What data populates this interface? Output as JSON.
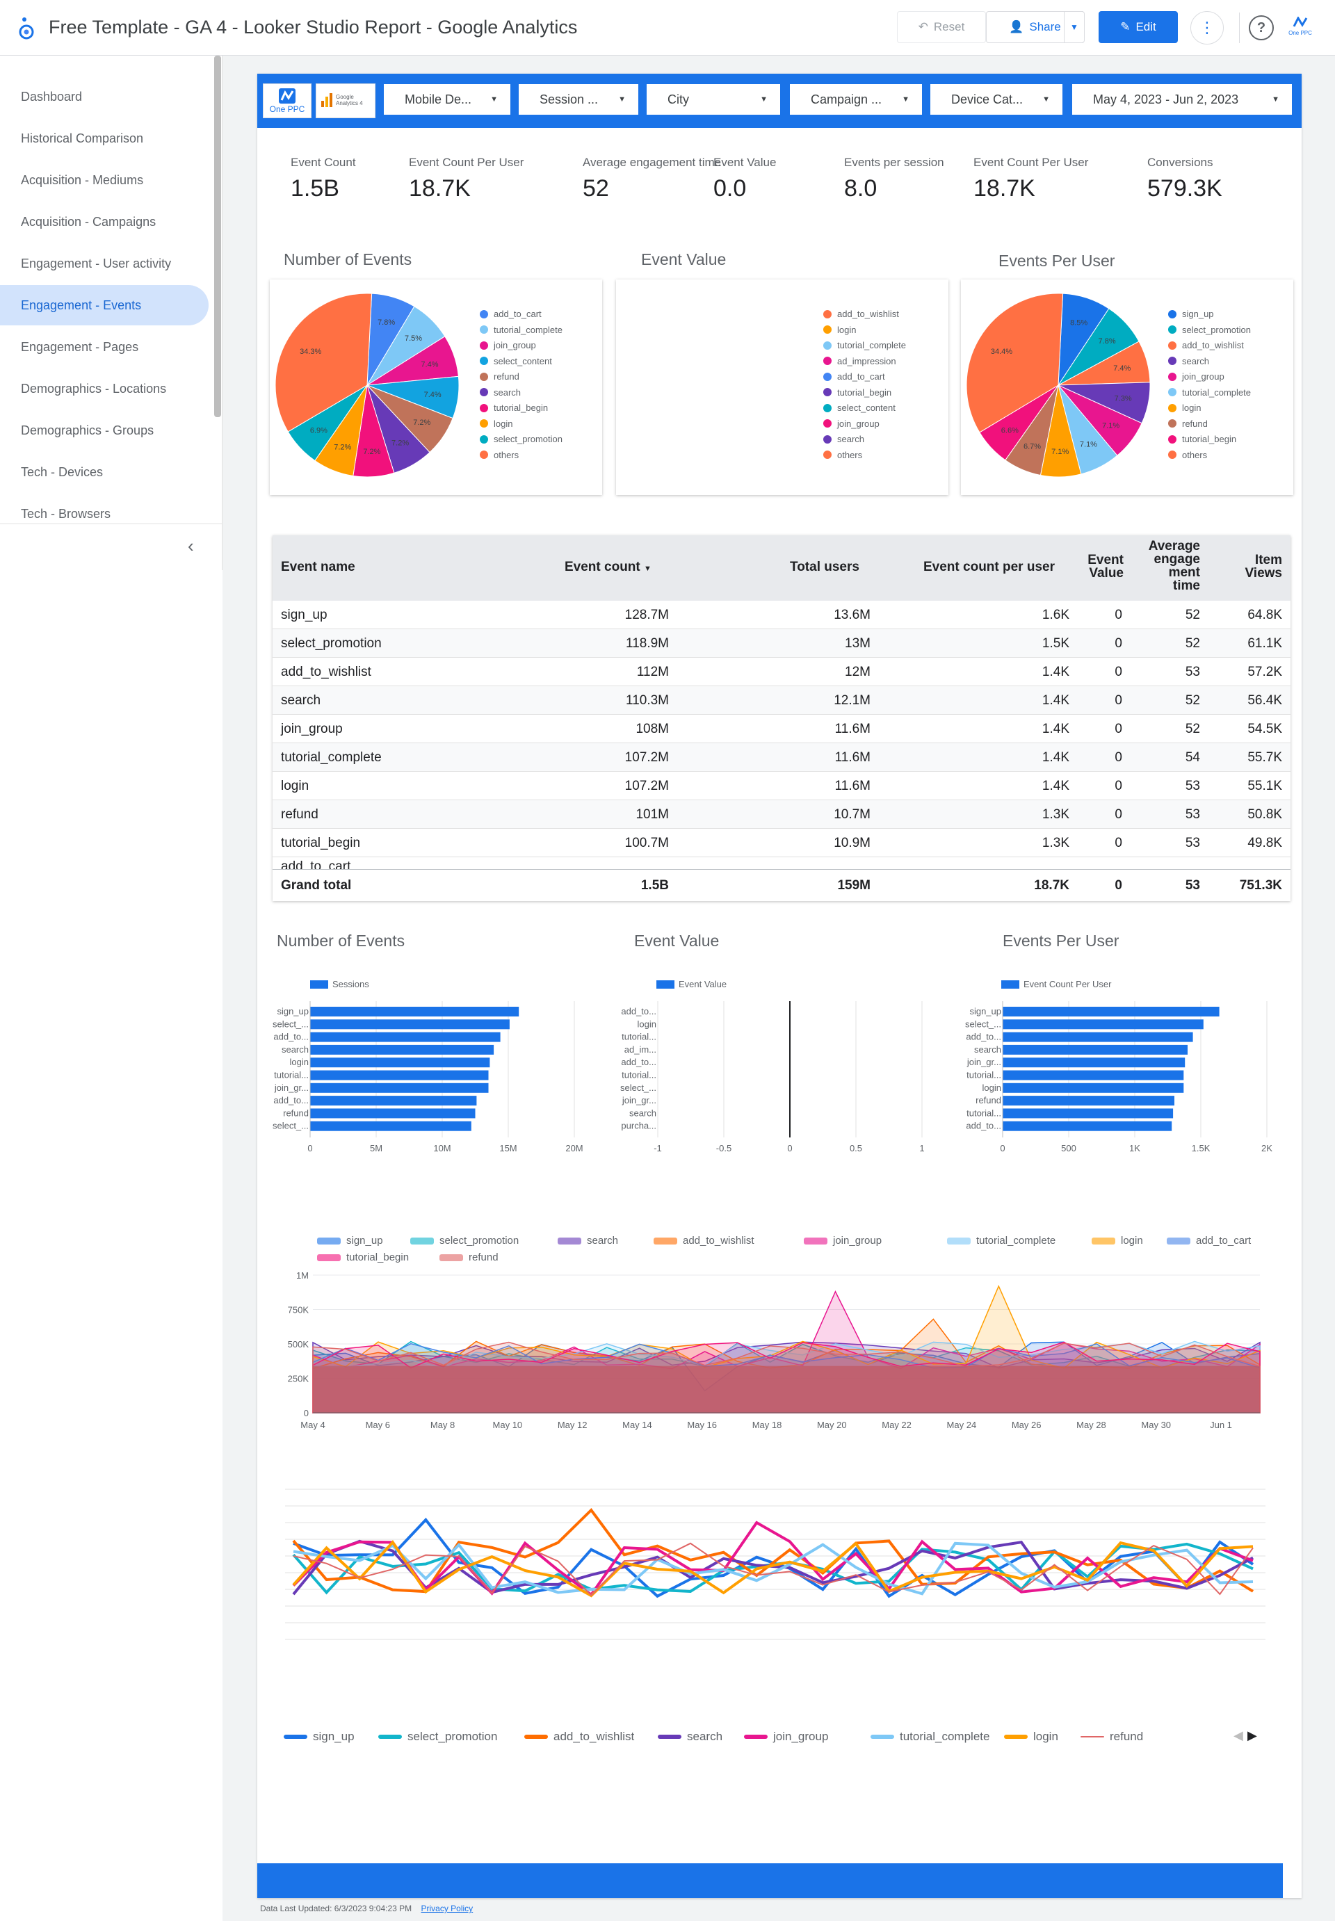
{
  "app": {
    "title": "Free Template - GA 4 - Looker Studio Report - Google Analytics"
  },
  "toolbar": {
    "reset_label": "Reset",
    "share_label": "Share",
    "edit_label": "Edit",
    "help_label": "?",
    "account_label": "One PPC"
  },
  "sidebar": {
    "items": [
      {
        "label": "Dashboard"
      },
      {
        "label": "Historical Comparison"
      },
      {
        "label": "Acquisition - Mediums"
      },
      {
        "label": "Acquisition - Campaigns"
      },
      {
        "label": "Engagement - User activity"
      },
      {
        "label": "Engagement - Events"
      },
      {
        "label": "Engagement - Pages"
      },
      {
        "label": "Demographics - Locations"
      },
      {
        "label": "Demographics - Groups"
      },
      {
        "label": "Tech - Devices"
      },
      {
        "label": "Tech - Browsers"
      }
    ],
    "active_index": 5
  },
  "filters": {
    "logo1": "One PPC",
    "logo2": "Google Analytics 4",
    "items": [
      {
        "label": "Mobile De..."
      },
      {
        "label": "Session ..."
      },
      {
        "label": "City"
      },
      {
        "label": "Campaign ..."
      },
      {
        "label": "Device Cat..."
      },
      {
        "label": "May 4, 2023 - Jun 2, 2023"
      }
    ]
  },
  "scorecards": [
    {
      "label": "Event Count",
      "value": "1.5B"
    },
    {
      "label": "Event Count Per User",
      "value": "18.7K"
    },
    {
      "label": "Average engagement time",
      "value": "52"
    },
    {
      "label": "Event Value",
      "value": "0.0"
    },
    {
      "label": "Events per session",
      "value": "8.0"
    },
    {
      "label": "Event Count Per User",
      "value": "18.7K"
    },
    {
      "label": "Conversions",
      "value": "579.3K"
    }
  ],
  "colors": {
    "blue": "#4285f4",
    "lightblue": "#7ec8f6",
    "magenta": "#e8168f",
    "cyan": "#12a3e0",
    "brown": "#c0735a",
    "purple": "#673ab7",
    "pink": "#f1117c",
    "orange": "#ff9f00",
    "teal": "#00acc1",
    "red_orange": "#ff7043",
    "accent": "#1a73e8"
  },
  "pies": {
    "events": {
      "title": "Number of Events",
      "legend": [
        "add_to_cart",
        "tutorial_complete",
        "join_group",
        "select_content",
        "refund",
        "search",
        "tutorial_begin",
        "login",
        "select_promotion",
        "others"
      ],
      "slice_labels": [
        "7.8%",
        "7.5%",
        "7.4%",
        "7.4%",
        "7.2%",
        "7.2%",
        "7.2%",
        "7.2%",
        "6.9%",
        "34.3%"
      ]
    },
    "value": {
      "title": "Event Value",
      "legend": [
        "add_to_wishlist",
        "login",
        "tutorial_complete",
        "ad_impression",
        "add_to_cart",
        "tutorial_begin",
        "select_content",
        "join_group",
        "search",
        "others"
      ]
    },
    "peruser": {
      "title": "Events Per User",
      "legend": [
        "sign_up",
        "select_promotion",
        "add_to_wishlist",
        "search",
        "join_group",
        "tutorial_complete",
        "login",
        "refund",
        "tutorial_begin",
        "others"
      ],
      "slice_labels": [
        "8.5%",
        "7.8%",
        "7.4%",
        "7.3%",
        "7.1%",
        "7.1%",
        "7.1%",
        "6.7%",
        "6.6%",
        "34.4%"
      ]
    }
  },
  "table": {
    "headers": {
      "event_name": "Event name",
      "event_count": "Event count",
      "total_users": "Total users",
      "per_user": "Event count per user",
      "event_value_1": "Event",
      "event_value_2": "Value",
      "avg_1": "Average",
      "avg_2": "engage",
      "avg_3": "ment",
      "avg_4": "time",
      "item_1": "Item",
      "item_2": "Views"
    },
    "rows": [
      {
        "name": "sign_up",
        "count": "128.7M",
        "users": "13.6M",
        "per_user": "1.6K",
        "value": "0",
        "avg": "52",
        "views": "64.8K"
      },
      {
        "name": "select_promotion",
        "count": "118.9M",
        "users": "13M",
        "per_user": "1.5K",
        "value": "0",
        "avg": "52",
        "views": "61.1K"
      },
      {
        "name": "add_to_wishlist",
        "count": "112M",
        "users": "12M",
        "per_user": "1.4K",
        "value": "0",
        "avg": "53",
        "views": "57.2K"
      },
      {
        "name": "search",
        "count": "110.3M",
        "users": "12.1M",
        "per_user": "1.4K",
        "value": "0",
        "avg": "52",
        "views": "56.4K"
      },
      {
        "name": "join_group",
        "count": "108M",
        "users": "11.6M",
        "per_user": "1.4K",
        "value": "0",
        "avg": "52",
        "views": "54.5K"
      },
      {
        "name": "tutorial_complete",
        "count": "107.2M",
        "users": "11.6M",
        "per_user": "1.4K",
        "value": "0",
        "avg": "54",
        "views": "55.7K"
      },
      {
        "name": "login",
        "count": "107.2M",
        "users": "11.6M",
        "per_user": "1.4K",
        "value": "0",
        "avg": "53",
        "views": "55.1K"
      },
      {
        "name": "refund",
        "count": "101M",
        "users": "10.7M",
        "per_user": "1.3K",
        "value": "0",
        "avg": "53",
        "views": "50.8K"
      },
      {
        "name": "tutorial_begin",
        "count": "100.7M",
        "users": "10.9M",
        "per_user": "1.3K",
        "value": "0",
        "avg": "53",
        "views": "49.8K"
      }
    ],
    "grand_total": {
      "label": "Grand total",
      "count": "1.5B",
      "users": "159M",
      "per_user": "18.7K",
      "value": "0",
      "avg": "53",
      "views": "751.3K"
    }
  },
  "bars": {
    "events": {
      "title": "Number of Events",
      "legend": "Sessions",
      "categories": [
        "sign_up",
        "select_...",
        "add_to...",
        "search",
        "login",
        "tutorial...",
        "join_gr...",
        "add_to...",
        "refund",
        "select_..."
      ],
      "ticks": [
        "0",
        "5M",
        "10M",
        "15M",
        "20M"
      ]
    },
    "value": {
      "title": "Event Value",
      "legend": "Event Value",
      "categories": [
        "add_to...",
        "login",
        "tutorial...",
        "ad_im...",
        "add_to...",
        "tutorial...",
        "select_...",
        "join_gr...",
        "search",
        "purcha..."
      ],
      "ticks": [
        "-1",
        "-0.5",
        "0",
        "0.5",
        "1"
      ]
    },
    "peruser": {
      "title": "Events Per User",
      "legend": "Event Count Per User",
      "categories": [
        "sign_up",
        "select_...",
        "add_to...",
        "search",
        "join_gr...",
        "tutorial...",
        "login",
        "refund",
        "tutorial...",
        "add_to..."
      ],
      "ticks": [
        "0",
        "500",
        "1K",
        "1.5K",
        "2K"
      ]
    }
  },
  "area_chart": {
    "legend": [
      "sign_up",
      "select_promotion",
      "search",
      "add_to_wishlist",
      "join_group",
      "tutorial_complete",
      "login",
      "add_to_cart",
      "tutorial_begin",
      "refund"
    ],
    "y_ticks": [
      "0",
      "250K",
      "500K",
      "750K",
      "1M"
    ],
    "x_ticks": [
      "May 4",
      "May 6",
      "May 8",
      "May 10",
      "May 12",
      "May 14",
      "May 16",
      "May 18",
      "May 20",
      "May 22",
      "May 24",
      "May 26",
      "May 28",
      "May 30",
      "Jun 1"
    ]
  },
  "line_chart": {
    "legend": [
      "sign_up",
      "select_promotion",
      "add_to_wishlist",
      "search",
      "join_group",
      "tutorial_complete",
      "login",
      "refund"
    ]
  },
  "chart_data": [
    {
      "type": "pie",
      "title": "Number of Events",
      "categories": [
        "add_to_cart",
        "tutorial_complete",
        "join_group",
        "select_content",
        "refund",
        "search",
        "tutorial_begin",
        "login",
        "select_promotion",
        "others"
      ],
      "values": [
        7.8,
        7.5,
        7.4,
        7.4,
        7.2,
        7.2,
        7.2,
        7.2,
        6.9,
        34.3
      ]
    },
    {
      "type": "pie",
      "title": "Events Per User",
      "categories": [
        "sign_up",
        "select_promotion",
        "add_to_wishlist",
        "search",
        "join_group",
        "tutorial_complete",
        "login",
        "refund",
        "tutorial_begin",
        "others"
      ],
      "values": [
        8.5,
        7.8,
        7.4,
        7.3,
        7.1,
        7.1,
        7.1,
        6.7,
        6.6,
        34.4
      ]
    },
    {
      "type": "bar",
      "title": "Number of Events",
      "categories": [
        "sign_up",
        "select_...",
        "add_to...",
        "search",
        "login",
        "tutorial...",
        "join_gr...",
        "add_to...",
        "refund",
        "select_..."
      ],
      "series": [
        {
          "name": "Sessions",
          "values": [
            15.8,
            15.1,
            14.4,
            13.9,
            13.6,
            13.5,
            13.5,
            12.6,
            12.5,
            12.2
          ]
        }
      ],
      "xlim": [
        0,
        20
      ]
    },
    {
      "type": "bar",
      "title": "Event Value",
      "categories": [
        "add_to...",
        "login",
        "tutorial...",
        "ad_im...",
        "add_to...",
        "tutorial...",
        "select_...",
        "join_gr...",
        "search",
        "purcha..."
      ],
      "series": [
        {
          "name": "Event Value",
          "values": [
            0,
            0,
            0,
            0,
            0,
            0,
            0,
            0,
            0,
            0
          ]
        }
      ],
      "xlim": [
        -1,
        1
      ]
    },
    {
      "type": "bar",
      "title": "Events Per User",
      "categories": [
        "sign_up",
        "select_...",
        "add_to...",
        "search",
        "join_gr...",
        "tutorial...",
        "login",
        "refund",
        "tutorial...",
        "add_to..."
      ],
      "series": [
        {
          "name": "Event Count Per User",
          "values": [
            1640,
            1520,
            1440,
            1400,
            1380,
            1370,
            1370,
            1300,
            1290,
            1280
          ]
        }
      ],
      "xlim": [
        0,
        2000
      ]
    }
  ]
}
